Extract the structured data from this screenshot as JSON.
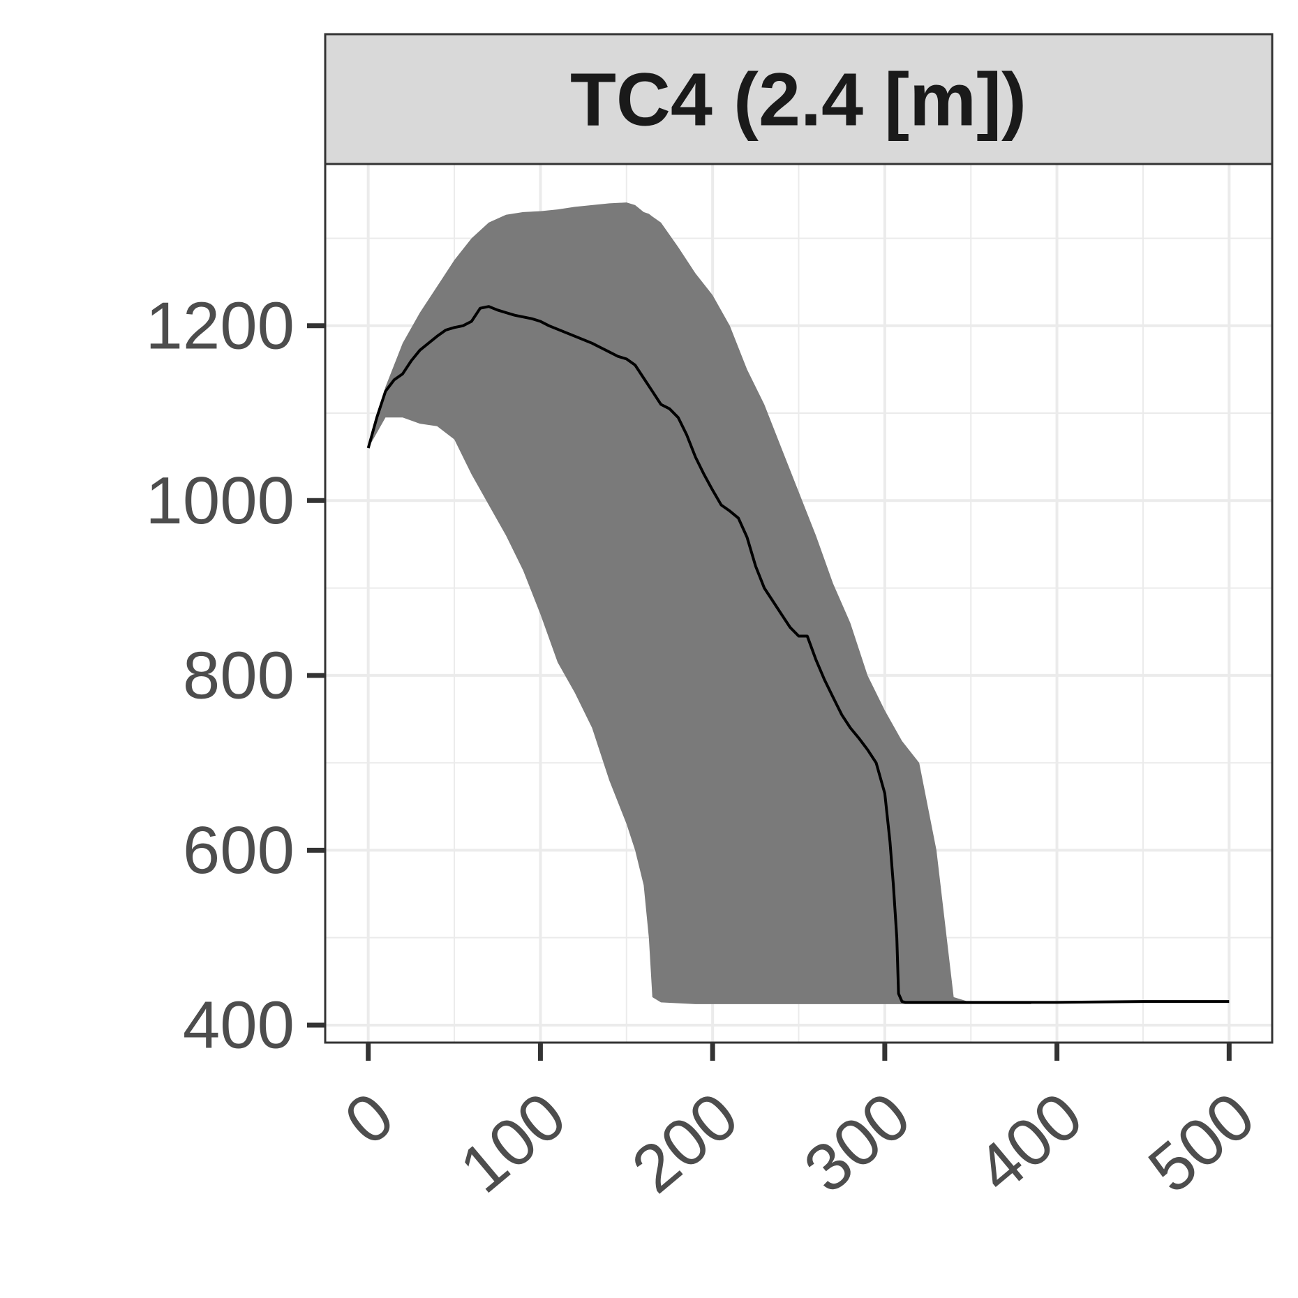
{
  "chart_data": {
    "type": "area",
    "title": "TC4 (2.4 [m])",
    "xlabel": "",
    "ylabel": "",
    "xlim": [
      -25,
      525
    ],
    "ylim": [
      380,
      1385
    ],
    "x_ticks": [
      0,
      100,
      200,
      300,
      400,
      500
    ],
    "y_ticks": [
      400,
      600,
      800,
      1000,
      1200
    ],
    "grid": true,
    "legend": "none",
    "colors": {
      "band": "#7a7a7a",
      "line": "#000000",
      "strip_fill": "#d9d9d9",
      "grid": "#ebebeb",
      "tick_text": "#4d4d4d"
    },
    "series": [
      {
        "kind": "ribbon",
        "x": [
          0,
          10,
          20,
          30,
          40,
          50,
          60,
          70,
          80,
          90,
          100,
          110,
          120,
          130,
          140,
          150,
          155,
          160,
          163,
          165,
          170,
          180,
          190,
          200,
          210,
          220,
          230,
          240,
          250,
          260,
          270,
          280,
          290,
          300,
          310,
          320,
          330,
          340,
          350,
          360,
          370,
          375,
          380,
          382,
          385
        ],
        "lower": [
          1060,
          1095,
          1095,
          1088,
          1085,
          1070,
          1030,
          995,
          960,
          920,
          870,
          815,
          780,
          740,
          680,
          630,
          600,
          560,
          500,
          432,
          426,
          425,
          424,
          424,
          424,
          424,
          424,
          424,
          424,
          424,
          424,
          424,
          424,
          424,
          424,
          424,
          424,
          424,
          424,
          424,
          424,
          424,
          424,
          424,
          424
        ],
        "upper": [
          1060,
          1130,
          1180,
          1215,
          1245,
          1275,
          1300,
          1318,
          1327,
          1330,
          1331,
          1333,
          1336,
          1338,
          1340,
          1341,
          1338,
          1330,
          1328,
          1325,
          1318,
          1290,
          1260,
          1235,
          1200,
          1150,
          1110,
          1060,
          1010,
          960,
          905,
          860,
          800,
          760,
          725,
          700,
          600,
          432,
          426,
          425,
          425,
          425,
          425,
          425,
          425
        ]
      },
      {
        "kind": "line",
        "x": [
          0,
          5,
          10,
          15,
          20,
          25,
          30,
          35,
          40,
          45,
          50,
          55,
          60,
          65,
          70,
          75,
          80,
          85,
          90,
          95,
          100,
          105,
          110,
          115,
          120,
          125,
          130,
          135,
          140,
          145,
          150,
          155,
          160,
          165,
          170,
          175,
          180,
          185,
          190,
          195,
          200,
          205,
          210,
          215,
          220,
          225,
          230,
          235,
          240,
          245,
          250,
          255,
          260,
          265,
          270,
          275,
          280,
          285,
          290,
          295,
          300,
          303,
          305,
          307,
          308,
          310,
          312,
          320,
          350,
          400,
          450,
          500
        ],
        "y": [
          1060,
          1095,
          1125,
          1138,
          1145,
          1160,
          1172,
          1180,
          1188,
          1195,
          1198,
          1200,
          1205,
          1220,
          1222,
          1218,
          1215,
          1212,
          1210,
          1208,
          1205,
          1200,
          1196,
          1192,
          1188,
          1184,
          1180,
          1175,
          1170,
          1165,
          1162,
          1155,
          1140,
          1125,
          1110,
          1105,
          1095,
          1075,
          1050,
          1030,
          1012,
          995,
          988,
          980,
          958,
          925,
          900,
          885,
          870,
          855,
          845,
          845,
          818,
          795,
          775,
          755,
          740,
          728,
          715,
          700,
          665,
          610,
          560,
          500,
          436,
          427,
          426,
          426,
          426,
          426,
          427,
          427
        ]
      }
    ]
  }
}
